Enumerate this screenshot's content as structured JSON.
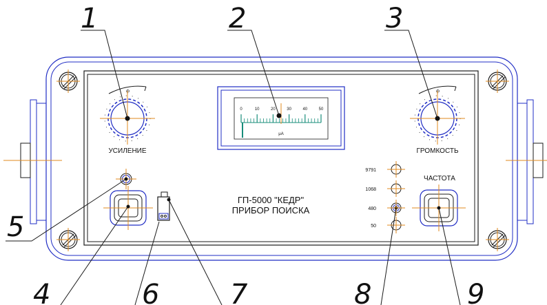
{
  "callouts": {
    "c1": "1",
    "c2": "2",
    "c3": "3",
    "c4": "4",
    "c5": "5",
    "c6": "6",
    "c7": "7",
    "c8": "8",
    "c9": "9"
  },
  "panel": {
    "gain_label": "УСИЛЕНИЕ",
    "volume_label": "ГРОМКОСТЬ",
    "frequency_label": "ЧАСТОТА",
    "device_title": "ГП-5000 \"КЕДР\"",
    "device_subtitle": "ПРИБОР ПОИСКА"
  },
  "meter": {
    "ticks": [
      "0",
      "10",
      "20",
      "30",
      "40",
      "50"
    ],
    "unit": "μA",
    "reading": 25,
    "max": 50
  },
  "frequency_steps": [
    "9791",
    "1068",
    "480",
    "50"
  ],
  "selected_frequency": "480",
  "colors": {
    "ink": "#1a1a1a",
    "outline": "#1f2cc4",
    "centerline": "#e08a1e",
    "scale": "#178c7a"
  }
}
